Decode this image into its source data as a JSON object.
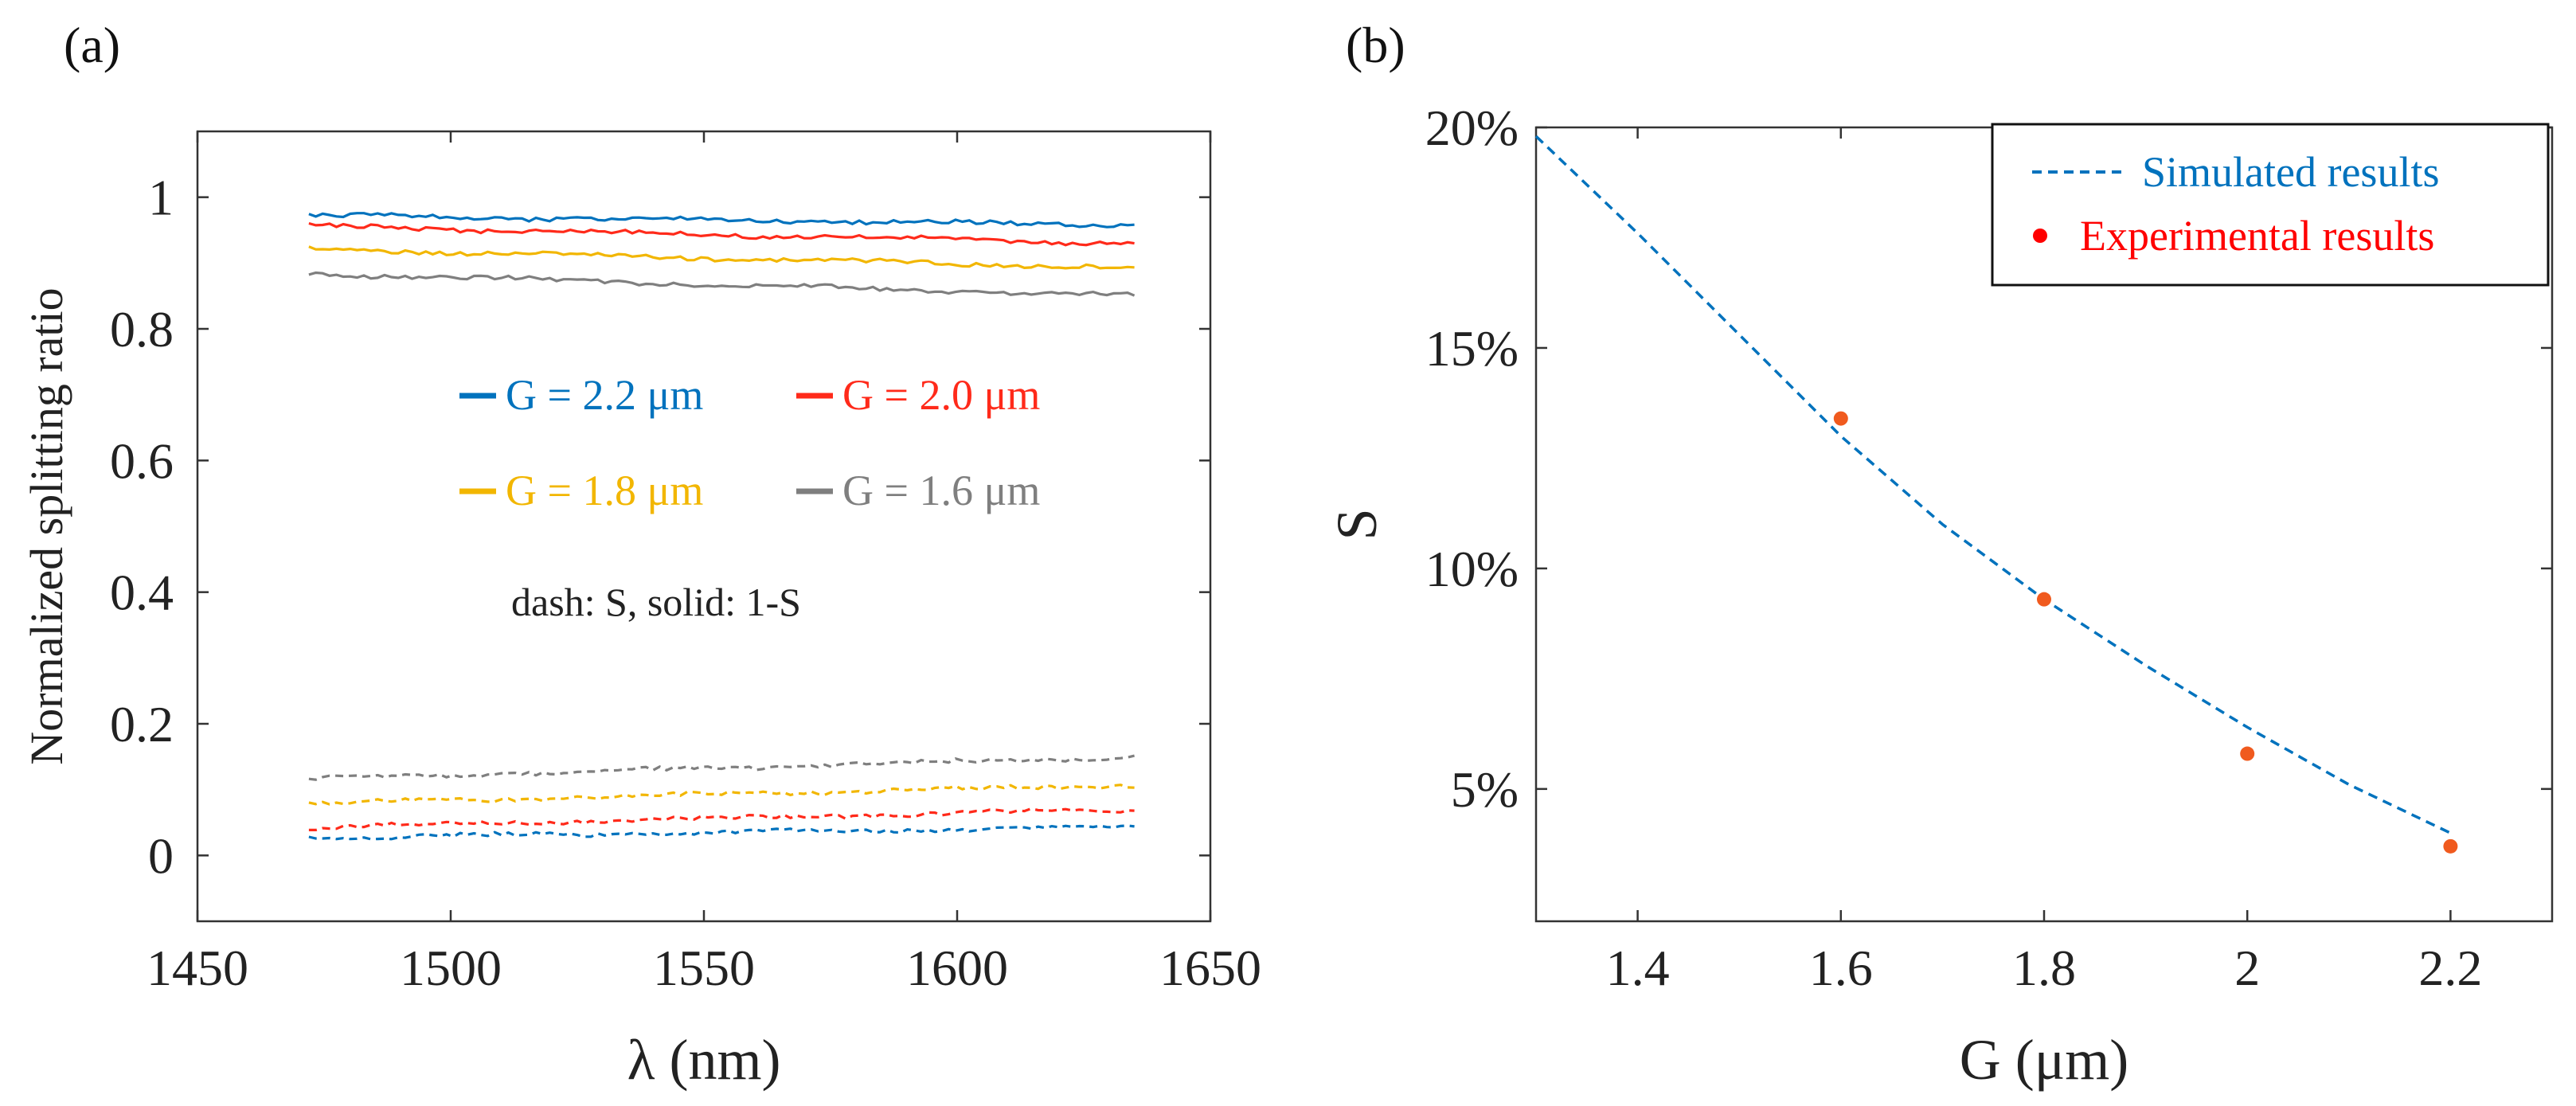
{
  "chart_data": [
    {
      "panel": "(a)",
      "type": "line",
      "xlabel": "λ (nm)",
      "ylabel": "Normalized splitting ratio",
      "xlim": [
        1450,
        1650
      ],
      "ylim": [
        -0.1,
        1.1
      ],
      "xticks": [
        1450,
        1500,
        1550,
        1600,
        1650
      ],
      "yticks": [
        0,
        0.2,
        0.4,
        0.6,
        0.8,
        1
      ],
      "xtick_labels": [
        "1450",
        "1500",
        "1550",
        "1600",
        "1650"
      ],
      "ytick_labels": [
        "0",
        "0.2",
        "0.4",
        "0.6",
        "0.8",
        "1"
      ],
      "annotation": "dash: S, solid: 1-S",
      "legend": [
        {
          "label": "G = 2.2 μm",
          "color": "#0072BD"
        },
        {
          "label": "G = 2.0 μm",
          "color": "#FF2A1A"
        },
        {
          "label": "G = 1.8 μm",
          "color": "#F2B600"
        },
        {
          "label": "G = 1.6 μm",
          "color": "#7F7F7F"
        }
      ],
      "series": [
        {
          "name": "G = 2.2 μm",
          "color": "#0072BD",
          "style": "solid",
          "x": [
            1472,
            1635
          ],
          "values": [
            0.972,
            0.958
          ]
        },
        {
          "name": "G = 2.0 μm",
          "color": "#FF2A1A",
          "style": "solid",
          "x": [
            1472,
            1635
          ],
          "values": [
            0.956,
            0.93
          ]
        },
        {
          "name": "G = 1.8 μm",
          "color": "#F2B600",
          "style": "solid",
          "x": [
            1472,
            1635
          ],
          "values": [
            0.921,
            0.893
          ]
        },
        {
          "name": "G = 1.6 μm",
          "color": "#7F7F7F",
          "style": "solid",
          "x": [
            1472,
            1635
          ],
          "values": [
            0.884,
            0.85
          ]
        },
        {
          "name": "G = 2.2 μm",
          "color": "#0072BD",
          "style": "dash",
          "x": [
            1472,
            1635
          ],
          "values": [
            0.027,
            0.043
          ]
        },
        {
          "name": "G = 2.0 μm",
          "color": "#FF2A1A",
          "style": "dash",
          "x": [
            1472,
            1635
          ],
          "values": [
            0.043,
            0.07
          ]
        },
        {
          "name": "G = 1.8 μm",
          "color": "#F2B600",
          "style": "dash",
          "x": [
            1472,
            1635
          ],
          "values": [
            0.079,
            0.107
          ]
        },
        {
          "name": "G = 1.6 μm",
          "color": "#7F7F7F",
          "style": "dash",
          "x": [
            1472,
            1635
          ],
          "values": [
            0.116,
            0.15
          ]
        }
      ]
    },
    {
      "panel": "(b)",
      "type": "line",
      "xlabel": "G (μm)",
      "ylabel": "S",
      "xlim": [
        1.3,
        2.3
      ],
      "ylim": [
        0.02,
        0.2
      ],
      "xticks": [
        1.4,
        1.6,
        1.8,
        2.0,
        2.2
      ],
      "yticks": [
        0.05,
        0.1,
        0.15,
        0.2
      ],
      "xtick_labels": [
        "1.4",
        "1.6",
        "1.8",
        "2",
        "2.2"
      ],
      "ytick_labels": [
        "5%",
        "10%",
        "15%",
        "20%"
      ],
      "legend": [
        {
          "label": "Simulated results",
          "color": "#0072BD"
        },
        {
          "label": "Experimental results",
          "color": "#FF0000"
        }
      ],
      "series": [
        {
          "name": "Simulated results",
          "color": "#0072BD",
          "style": "dash",
          "x": [
            1.3,
            1.4,
            1.5,
            1.6,
            1.7,
            1.8,
            1.9,
            2.0,
            2.1,
            2.2
          ],
          "values": [
            0.198,
            0.176,
            0.153,
            0.13,
            0.11,
            0.093,
            0.078,
            0.064,
            0.051,
            0.04
          ]
        },
        {
          "name": "Experimental results",
          "color": "#F05A1E",
          "style": "marker",
          "x": [
            1.6,
            1.8,
            2.0,
            2.2
          ],
          "values": [
            0.134,
            0.093,
            0.058,
            0.037
          ]
        }
      ]
    }
  ]
}
